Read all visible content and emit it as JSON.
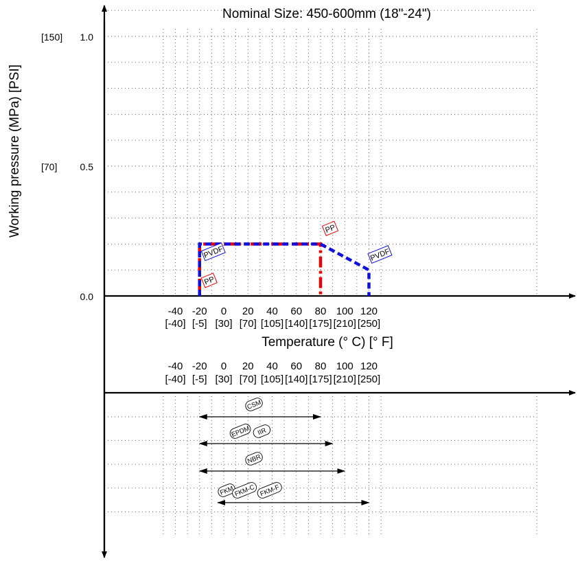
{
  "chart_data": {
    "type": "line",
    "title": "Nominal Size: 450-600mm (18\"-24\")",
    "ylabel": "Working pressure (MPa) [PSI]",
    "xlabel": "Temperature (° C) [° F]",
    "xlim": [
      -60,
      140
    ],
    "ylim": [
      0,
      1.1
    ],
    "grid": true,
    "x_ticks_c": [
      "-40",
      "-20",
      "0",
      "20",
      "40",
      "60",
      "80",
      "100",
      "120"
    ],
    "x_ticks_f": [
      "[-40]",
      "[-5]",
      "[30]",
      "[70]",
      "[105]",
      "[140]",
      "[175]",
      "[210]",
      "[250]"
    ],
    "y_ticks": [
      {
        "value": 1.0,
        "mpa": "1.0",
        "psi": "[150]"
      },
      {
        "value": 0.5,
        "mpa": "0.5",
        "psi": "[70]"
      },
      {
        "value": 0.0,
        "mpa": "0.0",
        "psi": ""
      }
    ],
    "series": [
      {
        "name": "PP",
        "color": "#ee0000",
        "style": "dash-dot",
        "points": [
          [
            -20,
            0
          ],
          [
            -20,
            0.2
          ],
          [
            80,
            0.2
          ],
          [
            80,
            0
          ]
        ]
      },
      {
        "name": "PVDF",
        "color": "#1111dd",
        "style": "dash",
        "points": [
          [
            -20,
            0
          ],
          [
            -20,
            0.2
          ],
          [
            80,
            0.2
          ],
          [
            120,
            0.1
          ],
          [
            120,
            0
          ]
        ]
      }
    ],
    "series_labels": [
      {
        "text": "PP",
        "x": -20,
        "y": 0.06,
        "color": "#ee0000"
      },
      {
        "text": "PVDF",
        "x": -20,
        "y": 0.17,
        "color": "#1111dd"
      },
      {
        "text": "PP",
        "x": 80,
        "y": 0.26,
        "color": "#ee0000"
      },
      {
        "text": "PVDF",
        "x": 120,
        "y": 0.16,
        "color": "#1111dd"
      }
    ],
    "seal_ranges": [
      {
        "min": -20,
        "max": 80,
        "labels": [
          "CSM"
        ]
      },
      {
        "min": -20,
        "max": 90,
        "labels": [
          "EPDM",
          "IIR"
        ]
      },
      {
        "min": -20,
        "max": 100,
        "labels": [
          "NBR"
        ]
      },
      {
        "min": -5,
        "max": 120,
        "labels": [
          "FKM",
          "FKM-C",
          "FKM-F"
        ]
      }
    ]
  }
}
